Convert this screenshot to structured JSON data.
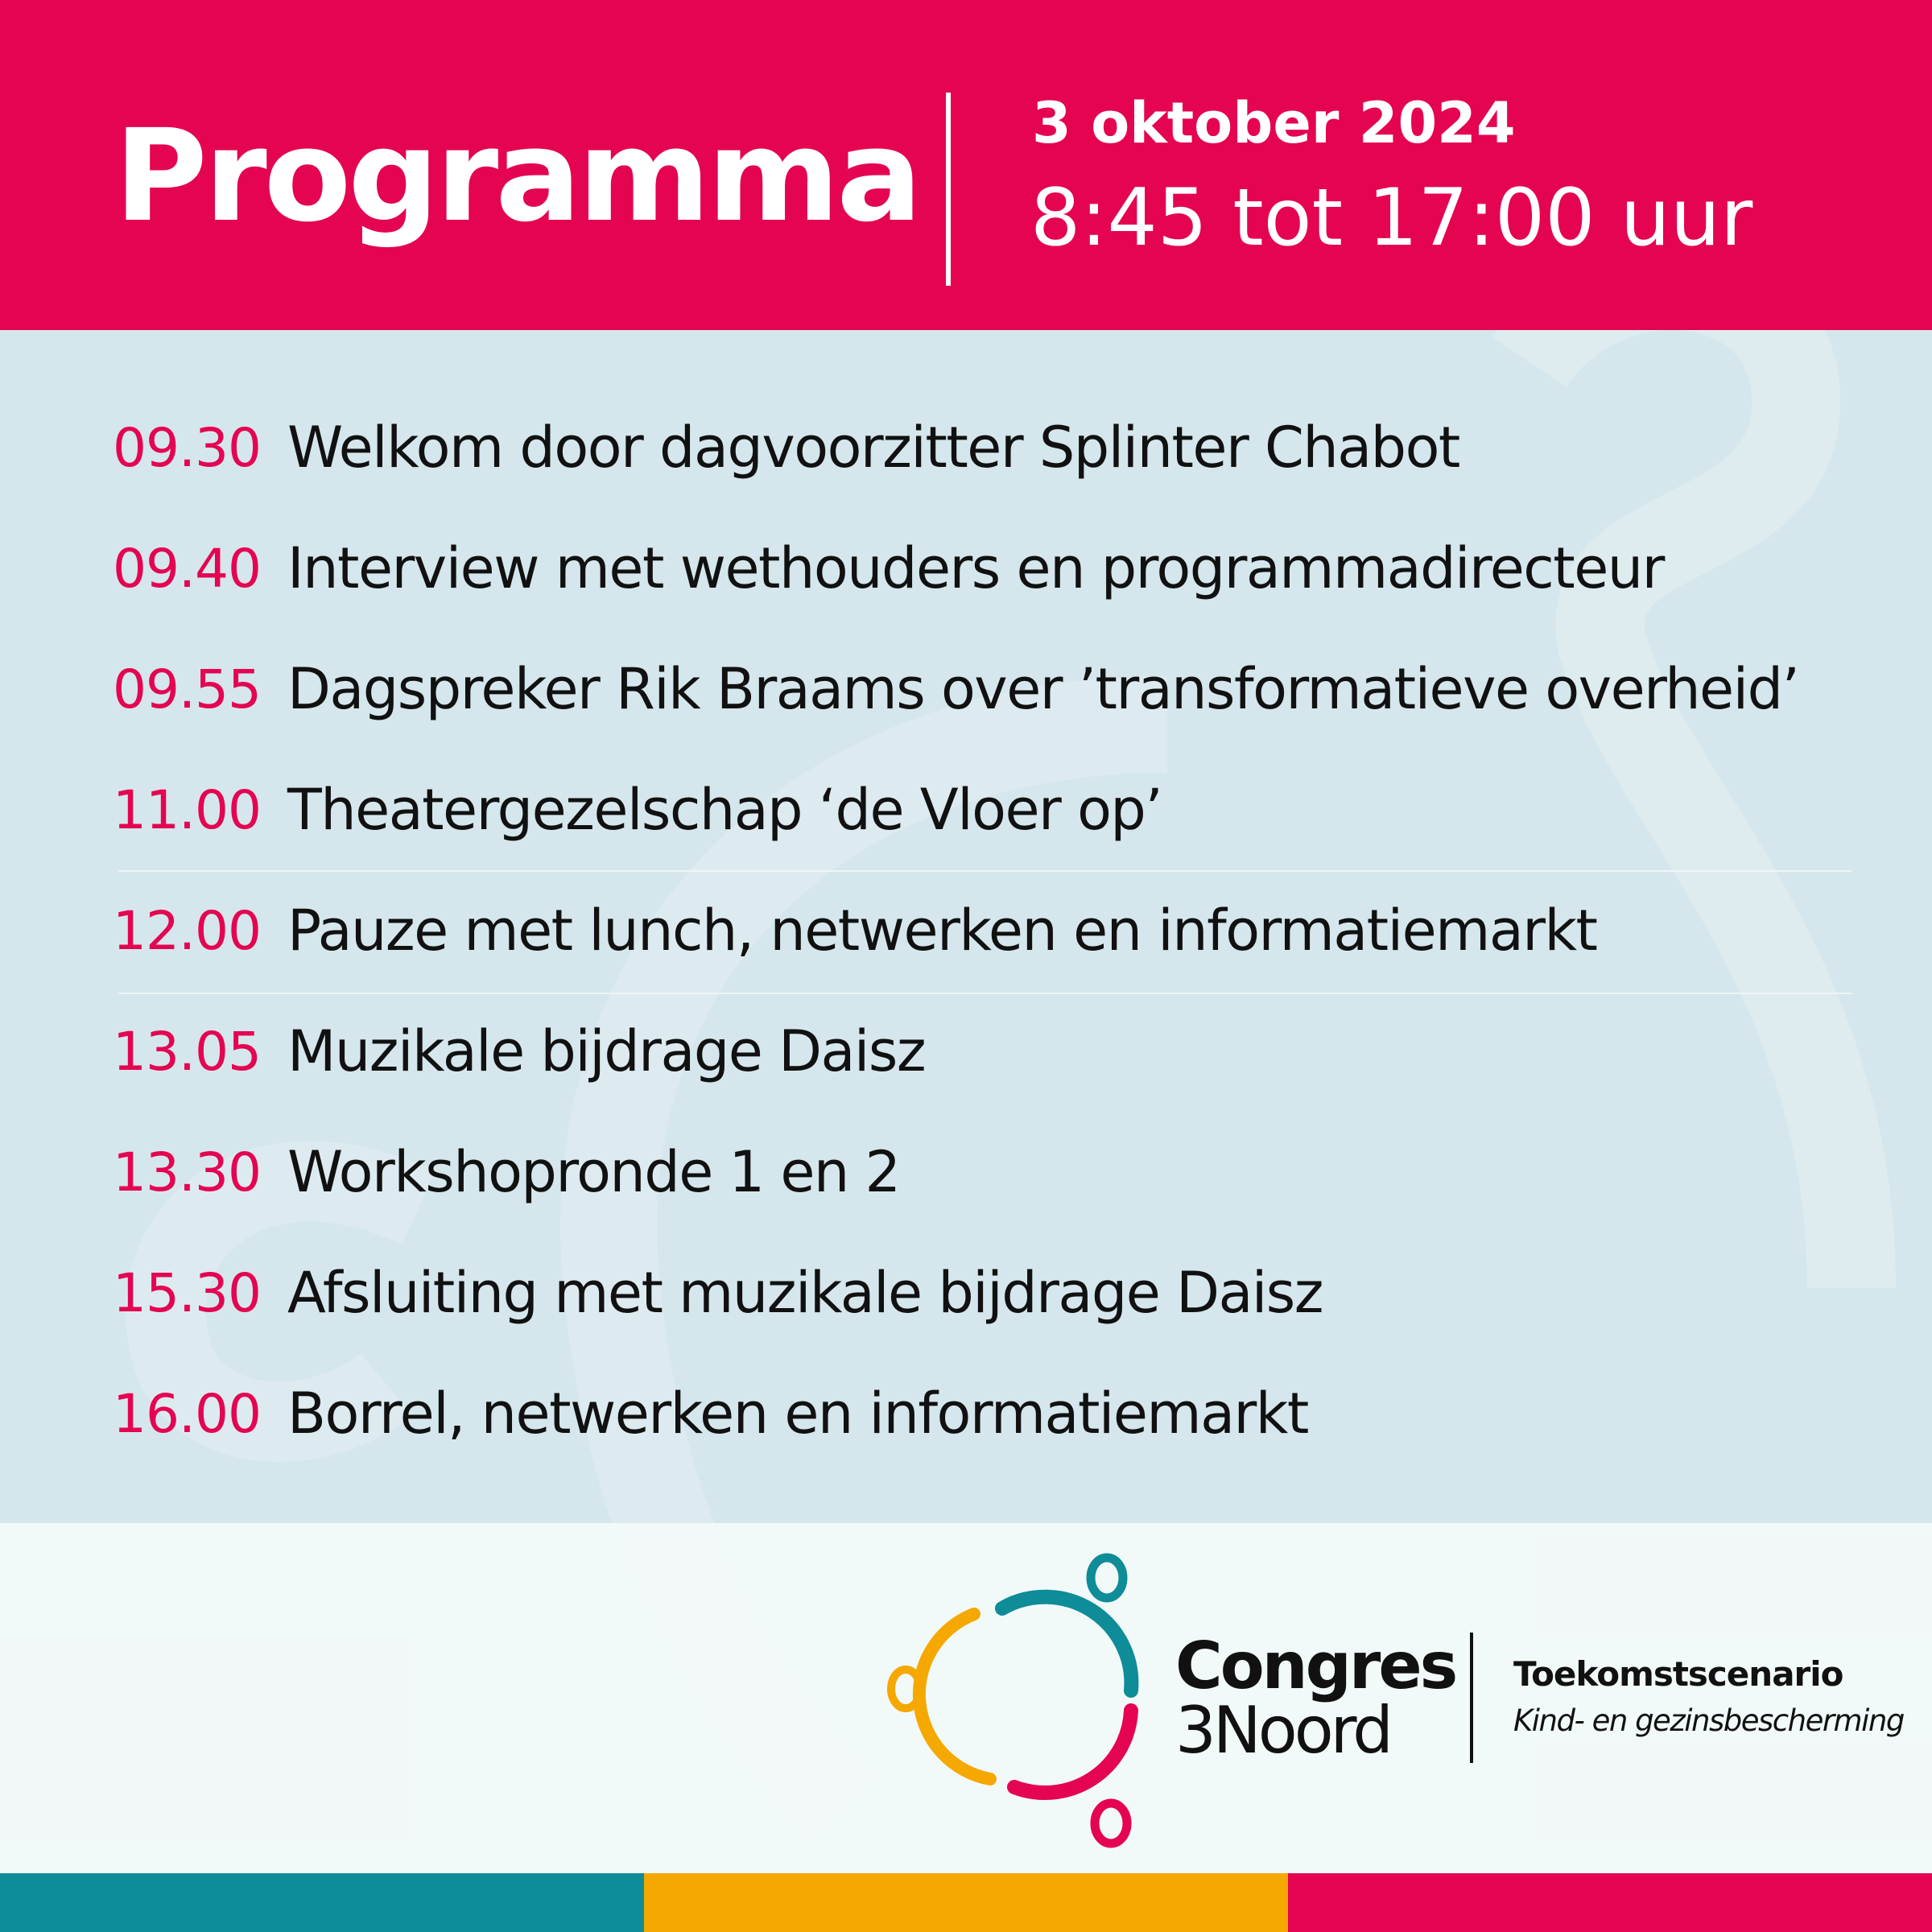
{
  "header": {
    "title": "Programma",
    "date": "3 oktober 2024",
    "hours": "8:45 tot 17:00 uur"
  },
  "program": [
    {
      "time": "09.30",
      "text": "Welkom door dagvoorzitter Splinter Chabot"
    },
    {
      "time": "09.40",
      "text": "Interview met wethouders en programmadirecteur"
    },
    {
      "time": "09.55",
      "text": "Dagspreker Rik Braams over ’transformatieve overheid’"
    },
    {
      "time": "11.00",
      "text": "Theatergezelschap ‘de Vloer op’"
    },
    {
      "time": "12.00",
      "text": "Pauze met lunch, netwerken en informatiemarkt"
    },
    {
      "time": "13.05",
      "text": "Muzikale bijdrage Daisz"
    },
    {
      "time": "13.30",
      "text": "Workshopronde 1 en 2"
    },
    {
      "time": "15.30",
      "text": "Afsluiting met muzikale bijdrage Daisz"
    },
    {
      "time": "16.00",
      "text": "Borrel, netwerken en informatiemarkt"
    }
  ],
  "footer": {
    "logo_line1": "Congres",
    "logo_line2": "3Noord",
    "tagline_bold": "Toekomstscenario",
    "tagline_italic": "Kind- en gezinsbescherming"
  },
  "colors": {
    "pink": "#e40451",
    "teal": "#0e8c98",
    "yellow": "#f5a800",
    "background": "#d5e7ec"
  }
}
